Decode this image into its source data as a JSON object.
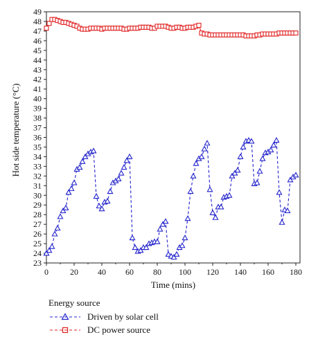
{
  "chart_data": {
    "type": "line",
    "xlabel": "Time (mins)",
    "ylabel": "Hot side temperature (°C)",
    "xlim": [
      0,
      183
    ],
    "ylim": [
      23,
      49
    ],
    "xticks": [
      0,
      20,
      40,
      60,
      80,
      100,
      120,
      140,
      160,
      180
    ],
    "yticks": [
      23,
      24,
      25,
      26,
      27,
      28,
      29,
      30,
      31,
      32,
      33,
      34,
      35,
      36,
      37,
      38,
      39,
      40,
      41,
      42,
      43,
      44,
      45,
      46,
      47,
      48,
      49
    ],
    "grid": false,
    "legend": {
      "title": "Energy source",
      "placement": "bottom-left"
    },
    "series": [
      {
        "name": "Driven by solar cell",
        "color": "#2222cc",
        "line_style": "dashed",
        "marker": "triangle",
        "x": [
          0,
          2,
          4,
          6,
          8,
          10,
          12,
          14,
          16,
          18,
          20,
          22,
          24,
          26,
          28,
          30,
          32,
          34,
          36,
          38,
          40,
          42,
          44,
          46,
          48,
          50,
          52,
          54,
          56,
          58,
          60,
          62,
          64,
          66,
          68,
          70,
          72,
          74,
          76,
          78,
          80,
          82,
          84,
          86,
          88,
          90,
          92,
          94,
          96,
          98,
          100,
          102,
          104,
          106,
          108,
          110,
          112,
          114,
          116,
          118,
          120,
          122,
          124,
          126,
          128,
          130,
          132,
          134,
          136,
          138,
          140,
          142,
          144,
          146,
          148,
          150,
          152,
          154,
          156,
          158,
          160,
          162,
          164,
          166,
          168,
          170,
          172,
          174,
          176,
          178,
          180
        ],
        "values": [
          24.0,
          24.3,
          24.7,
          26.0,
          26.6,
          27.8,
          28.4,
          28.7,
          30.3,
          30.7,
          31.3,
          32.7,
          32.9,
          33.5,
          34.0,
          34.3,
          34.5,
          34.6,
          29.9,
          28.9,
          28.6,
          29.3,
          29.4,
          30.4,
          31.3,
          31.5,
          31.7,
          32.3,
          32.9,
          33.6,
          34.0,
          25.6,
          24.6,
          24.2,
          24.3,
          24.6,
          24.6,
          25.0,
          25.1,
          25.2,
          25.2,
          26.5,
          27.0,
          27.3,
          23.9,
          23.7,
          23.6,
          23.9,
          24.6,
          24.8,
          25.6,
          27.6,
          30.4,
          32.0,
          33.3,
          33.8,
          34.0,
          34.8,
          35.4,
          30.6,
          28.2,
          27.7,
          28.8,
          28.8,
          29.8,
          29.9,
          30.0,
          32.0,
          32.3,
          32.6,
          34.0,
          35.0,
          35.6,
          35.7,
          35.6,
          31.2,
          31.3,
          32.5,
          33.8,
          34.4,
          34.5,
          34.7,
          35.2,
          35.7,
          30.3,
          27.2,
          28.5,
          28.4,
          31.6,
          31.9,
          32.1
        ]
      },
      {
        "name": "DC power source",
        "color": "#e02020",
        "line_style": "dashed",
        "marker": "square",
        "x": [
          0,
          2,
          4,
          6,
          8,
          10,
          12,
          14,
          16,
          18,
          20,
          22,
          24,
          26,
          28,
          30,
          32,
          34,
          36,
          38,
          40,
          42,
          44,
          46,
          48,
          50,
          52,
          54,
          56,
          58,
          60,
          62,
          64,
          66,
          68,
          70,
          72,
          74,
          76,
          78,
          80,
          82,
          84,
          86,
          88,
          90,
          92,
          94,
          96,
          98,
          100,
          102,
          104,
          106,
          108,
          110,
          112,
          114,
          116,
          118,
          120,
          122,
          124,
          126,
          128,
          130,
          132,
          134,
          136,
          138,
          140,
          142,
          144,
          146,
          148,
          150,
          152,
          154,
          156,
          158,
          160,
          162,
          164,
          166,
          168,
          170,
          172,
          174,
          176,
          178,
          180
        ],
        "values": [
          47.3,
          47.8,
          48.2,
          48.2,
          48.1,
          48.0,
          47.9,
          47.9,
          47.8,
          47.7,
          47.6,
          47.5,
          47.3,
          47.2,
          47.2,
          47.2,
          47.3,
          47.3,
          47.3,
          47.3,
          47.2,
          47.3,
          47.3,
          47.3,
          47.3,
          47.3,
          47.3,
          47.3,
          47.2,
          47.2,
          47.3,
          47.3,
          47.3,
          47.3,
          47.4,
          47.4,
          47.4,
          47.4,
          47.3,
          47.3,
          47.5,
          47.5,
          47.5,
          47.5,
          47.4,
          47.3,
          47.3,
          47.4,
          47.4,
          47.3,
          47.3,
          47.4,
          47.4,
          47.4,
          47.5,
          47.6,
          46.8,
          46.7,
          46.7,
          46.6,
          46.6,
          46.6,
          46.6,
          46.6,
          46.6,
          46.6,
          46.6,
          46.6,
          46.6,
          46.6,
          46.6,
          46.6,
          46.5,
          46.5,
          46.5,
          46.5,
          46.6,
          46.6,
          46.7,
          46.7,
          46.7,
          46.7,
          46.7,
          46.7,
          46.8,
          46.8,
          46.8,
          46.8,
          46.8,
          46.8,
          46.8
        ]
      }
    ]
  }
}
